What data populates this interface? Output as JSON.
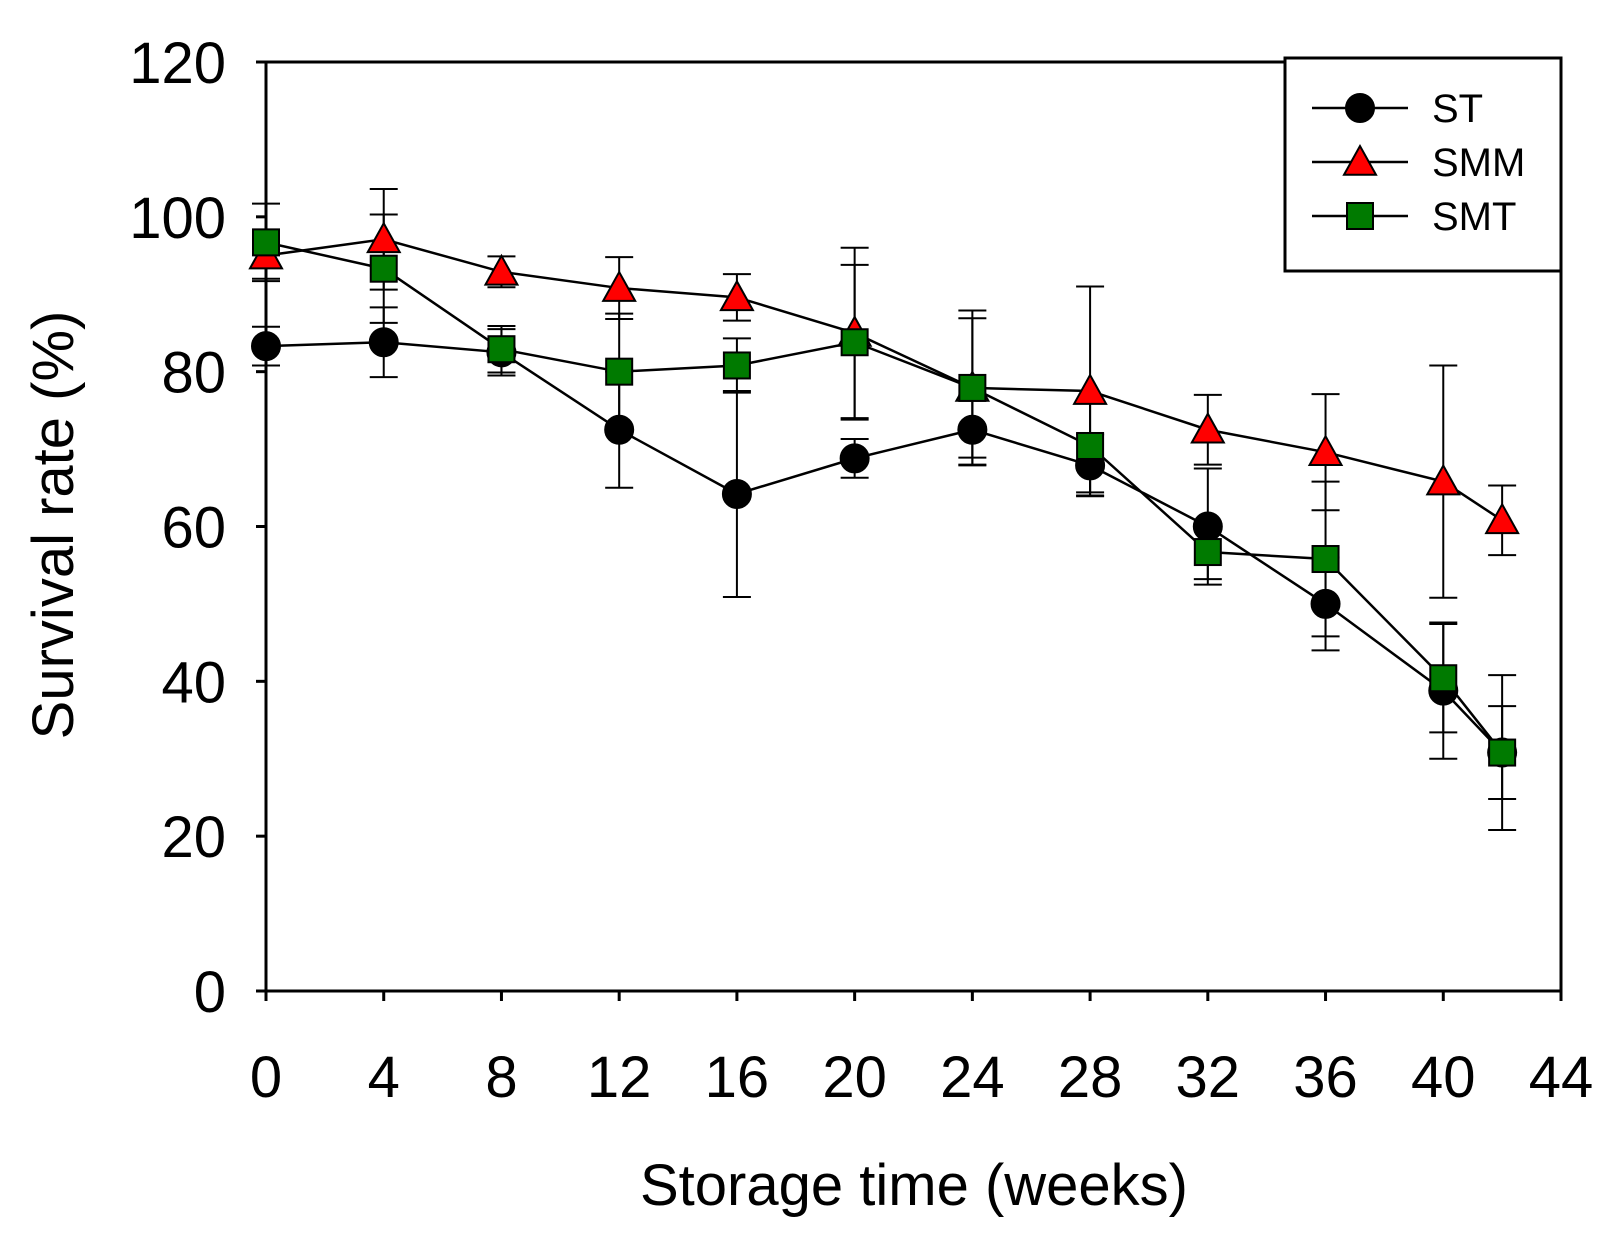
{
  "chart_data": {
    "type": "line",
    "title": "",
    "xlabel": "Storage time (weeks)",
    "ylabel": "Survival rate (%)",
    "xlim": [
      0,
      44
    ],
    "ylim": [
      0,
      120
    ],
    "xticks": [
      0,
      4,
      8,
      12,
      16,
      20,
      24,
      28,
      32,
      36,
      40,
      44
    ],
    "yticks": [
      0,
      20,
      40,
      60,
      80,
      100,
      120
    ],
    "grid": false,
    "legend_position": "top-right",
    "series": [
      {
        "name": "ST",
        "marker": "circle",
        "color": "#000000",
        "x": [
          0,
          4,
          8,
          12,
          16,
          20,
          24,
          28,
          32,
          36,
          40,
          42
        ],
        "y": [
          83.3,
          83.8,
          82.5,
          72.5,
          64.2,
          68.8,
          72.5,
          67.9,
          60.0,
          50.0,
          38.8,
          30.8
        ],
        "err": [
          2.5,
          4.5,
          3.0,
          7.5,
          13.3,
          2.5,
          4.5,
          4.0,
          7.5,
          6.0,
          8.8,
          6.0
        ]
      },
      {
        "name": "SMM",
        "marker": "triangle",
        "color": "#ff0000",
        "x": [
          0,
          4,
          8,
          12,
          16,
          20,
          24,
          28,
          32,
          36,
          40,
          42
        ],
        "y": [
          95.0,
          97.1,
          92.9,
          90.8,
          89.6,
          85.0,
          77.9,
          77.5,
          72.5,
          69.6,
          65.8,
          60.8
        ],
        "err": [
          3.0,
          6.5,
          2.0,
          4.0,
          3.0,
          11.0,
          9.0,
          13.5,
          4.5,
          7.5,
          15.0,
          4.5
        ]
      },
      {
        "name": "SMT",
        "marker": "square",
        "color": "#007a00",
        "x": [
          0,
          4,
          8,
          12,
          16,
          20,
          24,
          28,
          32,
          36,
          40,
          42
        ],
        "y": [
          96.7,
          93.3,
          82.9,
          80.0,
          80.8,
          83.8,
          77.9,
          70.4,
          56.7,
          55.8,
          40.4,
          30.8
        ],
        "err": [
          5.0,
          7.0,
          3.0,
          7.5,
          3.5,
          10.0,
          10.0,
          6.0,
          3.5,
          10.0,
          7.0,
          10.0
        ]
      }
    ]
  }
}
